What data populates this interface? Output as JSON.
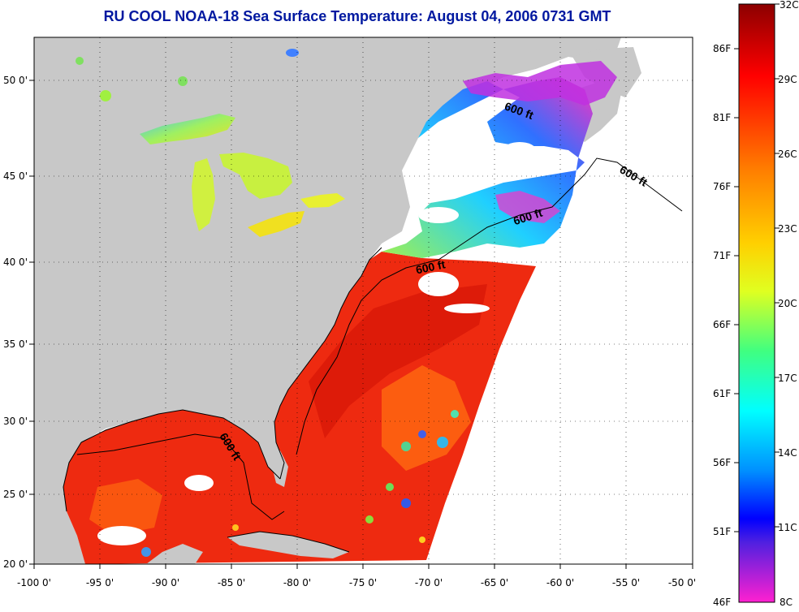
{
  "title": "RU COOL  NOAA-18  Sea Surface Temperature:  August 04, 2006 0731 GMT",
  "axes": {
    "x_ticks": [
      "-100 0'",
      "-95 0'",
      "-90 0'",
      "-85 0'",
      "-80 0'",
      "-75 0'",
      "-70 0'",
      "-65 0'",
      "-60 0'",
      "-55 0'",
      "-50 0'"
    ],
    "y_ticks": [
      "50 0'",
      "45 0'",
      "40 0'",
      "35 0'",
      "30 0'",
      "25 0'",
      "20 0'"
    ]
  },
  "contour_labels": [
    "600 ft",
    "600 ft",
    "600 ft",
    "600 ft",
    "600 ft"
  ],
  "colorbar": {
    "fahrenheit": [
      "86F",
      "81F",
      "76F",
      "71F",
      "66F",
      "61F",
      "56F",
      "51F",
      "46F"
    ],
    "celsius": [
      "32C",
      "29C",
      "26C",
      "23C",
      "20C",
      "17C",
      "14C",
      "11C",
      "8C"
    ]
  },
  "colors": {
    "land": "#c8c8c8",
    "no_data": "#ffffff",
    "warm": "#ee2a10",
    "title": "#0018a0"
  }
}
